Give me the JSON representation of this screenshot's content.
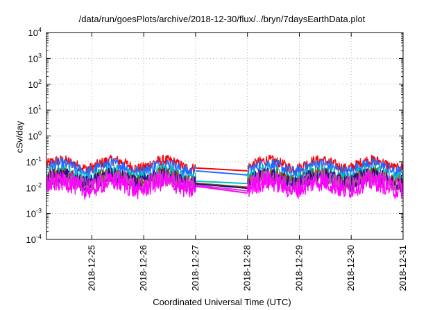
{
  "chart_data": {
    "type": "line",
    "title": "/data/run/goesPlots/archive/2018-12-30/flux/../bryn/7daysEarthData.plot",
    "xlabel": "Coordinated Universal Time (UTC)",
    "ylabel": "cSv/day",
    "yscale": "log",
    "ylim": [
      0.0001,
      10000
    ],
    "xlim": [
      "2018-12-24T03:00",
      "2018-12-31T00:00"
    ],
    "grid": true,
    "legend": "none",
    "y_ticks": [
      {
        "value": 0.0001,
        "base": "10",
        "exp": "-4"
      },
      {
        "value": 0.001,
        "base": "10",
        "exp": "-3"
      },
      {
        "value": 0.01,
        "base": "10",
        "exp": "-2"
      },
      {
        "value": 0.1,
        "base": "10",
        "exp": "-1"
      },
      {
        "value": 1,
        "base": "10",
        "exp": "0"
      },
      {
        "value": 10,
        "base": "10",
        "exp": "1"
      },
      {
        "value": 100,
        "base": "10",
        "exp": "2"
      },
      {
        "value": 1000,
        "base": "10",
        "exp": "3"
      },
      {
        "value": 10000,
        "base": "10",
        "exp": "4"
      }
    ],
    "x_ticks": [
      "2018-12-25",
      "2018-12-26",
      "2018-12-27",
      "2018-12-28",
      "2018-12-29",
      "2018-12-30",
      "2018-12-31"
    ],
    "data_gap": [
      "2018-12-27T00:00",
      "2018-12-28T00:00"
    ],
    "series": [
      {
        "color": "#ff0000",
        "level": 0.085,
        "gap_start": 0.058,
        "gap_end": 0.045
      },
      {
        "color": "#1e6cff",
        "level": 0.062,
        "gap_start": 0.045,
        "gap_end": 0.031
      },
      {
        "color": "#00c0c0",
        "level": 0.033,
        "gap_start": 0.018,
        "gap_end": 0.0145
      },
      {
        "color": "#7a5a00",
        "level": 0.024,
        "gap_start": 0.015,
        "gap_end": 0.0105
      },
      {
        "color": "#2a0a8a",
        "level": 0.021,
        "gap_start": 0.014,
        "gap_end": 0.0095
      },
      {
        "color": "#d040c0",
        "level": 0.018,
        "gap_start": 0.0125,
        "gap_end": 0.0075
      },
      {
        "color": "#ff00ff",
        "level": 0.0125,
        "gap_start": 0.0115,
        "gap_end": 0.0062
      }
    ]
  }
}
